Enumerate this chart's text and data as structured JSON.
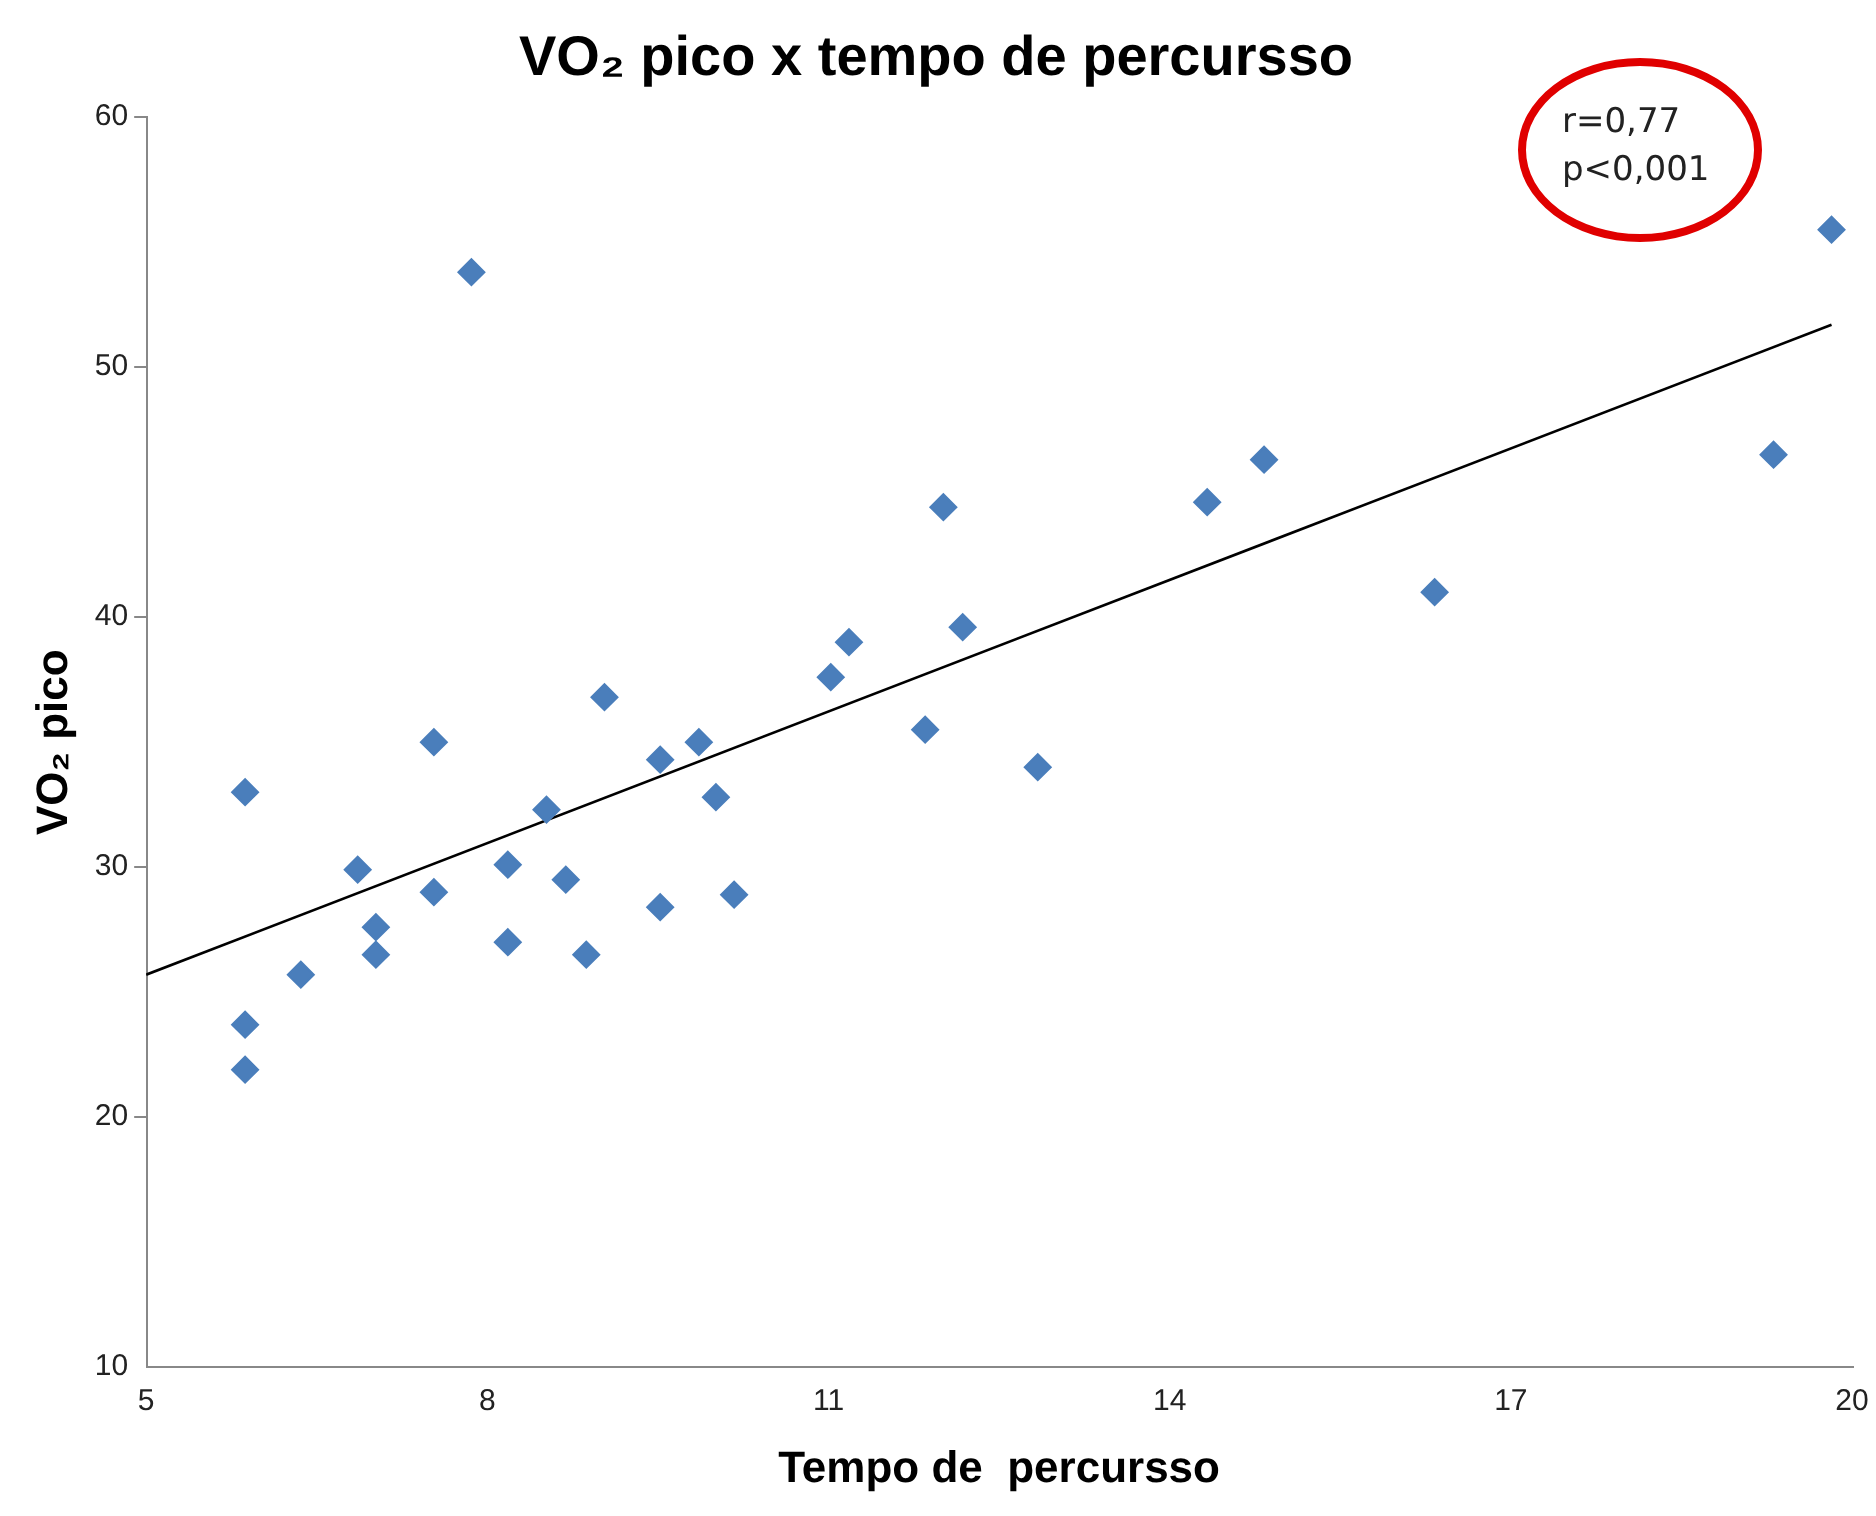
{
  "chart_data": {
    "type": "scatter",
    "title": "VO₂ pico x tempo de percursso",
    "xlabel": "Tempo de  percursso",
    "ylabel": "VO₂ pico",
    "xlim": [
      5,
      20
    ],
    "xticks": [
      5,
      8,
      11,
      14,
      17,
      20
    ],
    "ylim": [
      10,
      60
    ],
    "yticks": [
      10,
      20,
      30,
      40,
      50,
      60
    ],
    "grid": false,
    "legend": false,
    "marker": "diamond",
    "annotations": [
      "r=0,77\np<0,001"
    ],
    "series": [
      {
        "color": "#4a7ebb",
        "x": [
          5.87,
          5.87,
          5.87,
          6.36,
          6.86,
          7.02,
          7.02,
          7.53,
          7.53,
          7.86,
          8.18,
          8.18,
          8.52,
          8.69,
          8.87,
          9.03,
          9.52,
          9.52,
          9.86,
          10.01,
          10.17,
          11.02,
          11.18,
          11.85,
          12.01,
          12.18,
          12.84,
          14.33,
          14.83,
          16.33,
          19.31,
          19.82
        ],
        "values": [
          33.0,
          23.7,
          21.9,
          25.7,
          29.9,
          27.6,
          26.5,
          35.0,
          29.0,
          53.8,
          30.1,
          27.0,
          32.3,
          29.5,
          26.5,
          36.8,
          34.3,
          28.4,
          35.0,
          32.8,
          28.9,
          37.6,
          39.0,
          35.5,
          44.4,
          39.6,
          34.0,
          44.6,
          46.3,
          41.0,
          46.5,
          55.5
        ]
      },
      {
        "type": "line",
        "color": "#000000",
        "marker": "none",
        "x": [
          5,
          19.82
        ],
        "values": [
          25.7,
          51.7
        ]
      }
    ]
  }
}
